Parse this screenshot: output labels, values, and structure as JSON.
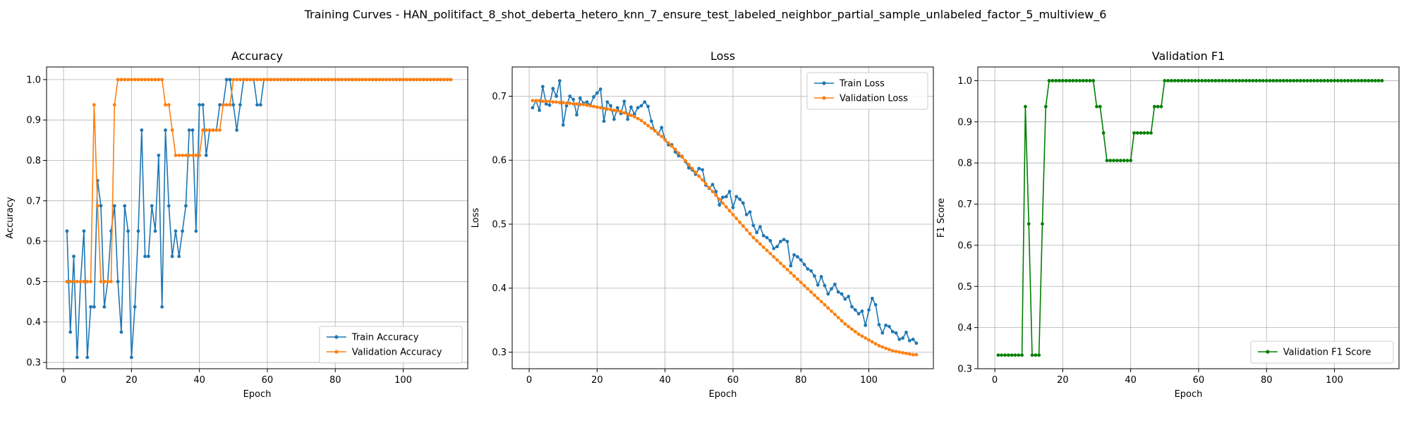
{
  "suptitle": "Training Curves - HAN_politifact_8_shot_deberta_hetero_knn_7_ensure_test_labeled_neighbor_partial_sample_unlabeled_factor_5_multiview_6",
  "colors": {
    "blue": "#1f77b4",
    "orange": "#ff7f0e",
    "green": "#008000",
    "grid": "#b0b0b0"
  },
  "chart_data": [
    {
      "type": "line",
      "title": "Accuracy",
      "xlabel": "Epoch",
      "ylabel": "Accuracy",
      "xlim": [
        -5,
        119
      ],
      "ylim": [
        0.2844,
        1.0312
      ],
      "xticks": [
        0,
        20,
        40,
        60,
        80,
        100
      ],
      "yticks": [
        0.3,
        0.4,
        0.5,
        0.6,
        0.7,
        0.8,
        0.9,
        1.0
      ],
      "ytick_decimals": 1,
      "grid": true,
      "legend_position": "lower-right",
      "series": [
        {
          "name": "Train Accuracy",
          "color": "#1f77b4",
          "values": [
            0.625,
            0.375,
            0.5625,
            0.3125,
            0.5,
            0.625,
            0.3125,
            0.4375,
            0.4375,
            0.75,
            0.6875,
            0.4375,
            0.5,
            0.625,
            0.6875,
            0.5,
            0.375,
            0.6875,
            0.625,
            0.3125,
            0.4375,
            0.625,
            0.875,
            0.5625,
            0.5625,
            0.6875,
            0.625,
            0.8125,
            0.4375,
            0.875,
            0.6875,
            0.5625,
            0.625,
            0.5625,
            0.625,
            0.6875,
            0.875,
            0.875,
            0.625,
            0.9375,
            0.9375,
            0.8125,
            0.875,
            0.875,
            0.875,
            0.9375,
            0.9375,
            1.0,
            1.0,
            0.9375,
            0.875,
            0.9375,
            1.0,
            1.0,
            1.0,
            1.0,
            0.9375,
            0.9375,
            1.0,
            1.0,
            1.0,
            1.0,
            1.0,
            1.0,
            1.0,
            1.0,
            1.0,
            1.0,
            1.0,
            1.0,
            1.0,
            1.0,
            1.0,
            1.0,
            1.0,
            1.0,
            1.0,
            1.0,
            1.0,
            1.0,
            1.0,
            1.0,
            1.0,
            1.0,
            1.0,
            1.0,
            1.0,
            1.0,
            1.0,
            1.0,
            1.0,
            1.0,
            1.0,
            1.0,
            1.0,
            1.0,
            1.0,
            1.0,
            1.0,
            1.0,
            1.0,
            1.0,
            1.0,
            1.0,
            1.0,
            1.0,
            1.0,
            1.0,
            1.0,
            1.0,
            1.0,
            1.0,
            1.0,
            1.0
          ]
        },
        {
          "name": "Validation Accuracy",
          "color": "#ff7f0e",
          "values": [
            0.5,
            0.5,
            0.5,
            0.5,
            0.5,
            0.5,
            0.5,
            0.5,
            0.9375,
            0.6875,
            0.5,
            0.5,
            0.5,
            0.5,
            0.9375,
            1.0,
            1.0,
            1.0,
            1.0,
            1.0,
            1.0,
            1.0,
            1.0,
            1.0,
            1.0,
            1.0,
            1.0,
            1.0,
            1.0,
            0.9375,
            0.9375,
            0.875,
            0.8125,
            0.8125,
            0.8125,
            0.8125,
            0.8125,
            0.8125,
            0.8125,
            0.8125,
            0.875,
            0.875,
            0.875,
            0.875,
            0.875,
            0.875,
            0.9375,
            0.9375,
            0.9375,
            1.0,
            1.0,
            1.0,
            1.0,
            1.0,
            1.0,
            1.0,
            1.0,
            1.0,
            1.0,
            1.0,
            1.0,
            1.0,
            1.0,
            1.0,
            1.0,
            1.0,
            1.0,
            1.0,
            1.0,
            1.0,
            1.0,
            1.0,
            1.0,
            1.0,
            1.0,
            1.0,
            1.0,
            1.0,
            1.0,
            1.0,
            1.0,
            1.0,
            1.0,
            1.0,
            1.0,
            1.0,
            1.0,
            1.0,
            1.0,
            1.0,
            1.0,
            1.0,
            1.0,
            1.0,
            1.0,
            1.0,
            1.0,
            1.0,
            1.0,
            1.0,
            1.0,
            1.0,
            1.0,
            1.0,
            1.0,
            1.0,
            1.0,
            1.0,
            1.0,
            1.0,
            1.0,
            1.0,
            1.0,
            1.0
          ]
        }
      ]
    },
    {
      "type": "line",
      "title": "Loss",
      "xlabel": "Epoch",
      "ylabel": "Loss",
      "xlim": [
        -5,
        119
      ],
      "ylim": [
        0.2741,
        0.7457
      ],
      "xticks": [
        0,
        20,
        40,
        60,
        80,
        100
      ],
      "yticks": [
        0.3,
        0.4,
        0.5,
        0.6,
        0.7
      ],
      "ytick_decimals": 1,
      "grid": true,
      "legend_position": "upper-right",
      "series": [
        {
          "name": "Train Loss",
          "color": "#1f77b4",
          "values": [
            0.682,
            0.693,
            0.678,
            0.715,
            0.688,
            0.686,
            0.712,
            0.7,
            0.724,
            0.655,
            0.685,
            0.7,
            0.695,
            0.671,
            0.697,
            0.689,
            0.691,
            0.686,
            0.699,
            0.705,
            0.711,
            0.661,
            0.691,
            0.685,
            0.664,
            0.682,
            0.673,
            0.692,
            0.664,
            0.683,
            0.672,
            0.682,
            0.685,
            0.691,
            0.684,
            0.661,
            0.646,
            0.641,
            0.651,
            0.632,
            0.624,
            0.624,
            0.613,
            0.607,
            0.606,
            0.598,
            0.588,
            0.585,
            0.578,
            0.587,
            0.585,
            0.561,
            0.556,
            0.562,
            0.551,
            0.53,
            0.542,
            0.543,
            0.551,
            0.526,
            0.543,
            0.539,
            0.533,
            0.515,
            0.519,
            0.498,
            0.487,
            0.496,
            0.482,
            0.479,
            0.474,
            0.462,
            0.465,
            0.473,
            0.476,
            0.473,
            0.435,
            0.452,
            0.449,
            0.444,
            0.437,
            0.43,
            0.427,
            0.419,
            0.405,
            0.418,
            0.404,
            0.391,
            0.399,
            0.406,
            0.394,
            0.391,
            0.383,
            0.387,
            0.371,
            0.366,
            0.36,
            0.364,
            0.342,
            0.366,
            0.384,
            0.374,
            0.343,
            0.33,
            0.342,
            0.34,
            0.332,
            0.33,
            0.32,
            0.322,
            0.331,
            0.318,
            0.32,
            0.314
          ]
        },
        {
          "name": "Validation Loss",
          "color": "#ff7f0e",
          "values": [
            0.693,
            0.693,
            0.693,
            0.692,
            0.692,
            0.692,
            0.691,
            0.691,
            0.69,
            0.69,
            0.689,
            0.689,
            0.688,
            0.688,
            0.687,
            0.687,
            0.686,
            0.685,
            0.684,
            0.683,
            0.682,
            0.681,
            0.68,
            0.679,
            0.678,
            0.677,
            0.676,
            0.674,
            0.672,
            0.67,
            0.668,
            0.665,
            0.662,
            0.658,
            0.654,
            0.65,
            0.646,
            0.642,
            0.637,
            0.632,
            0.627,
            0.622,
            0.617,
            0.611,
            0.605,
            0.599,
            0.593,
            0.587,
            0.581,
            0.575,
            0.569,
            0.563,
            0.557,
            0.551,
            0.545,
            0.539,
            0.533,
            0.527,
            0.521,
            0.515,
            0.509,
            0.503,
            0.497,
            0.491,
            0.485,
            0.479,
            0.474,
            0.469,
            0.464,
            0.459,
            0.454,
            0.449,
            0.444,
            0.439,
            0.434,
            0.429,
            0.424,
            0.419,
            0.414,
            0.409,
            0.404,
            0.399,
            0.394,
            0.389,
            0.384,
            0.379,
            0.374,
            0.369,
            0.364,
            0.359,
            0.354,
            0.349,
            0.344,
            0.34,
            0.336,
            0.332,
            0.328,
            0.325,
            0.322,
            0.319,
            0.316,
            0.313,
            0.31,
            0.308,
            0.306,
            0.304,
            0.302,
            0.301,
            0.3,
            0.299,
            0.298,
            0.297,
            0.296,
            0.296
          ]
        }
      ]
    },
    {
      "type": "line",
      "title": "Validation F1",
      "xlabel": "Epoch",
      "ylabel": "F1 Score",
      "xlim": [
        -5,
        119
      ],
      "ylim": [
        0.3,
        1.0333
      ],
      "xticks": [
        0,
        20,
        40,
        60,
        80,
        100
      ],
      "yticks": [
        0.3,
        0.4,
        0.5,
        0.6,
        0.7,
        0.8,
        0.9,
        1.0
      ],
      "ytick_decimals": 1,
      "grid": true,
      "legend_position": "lower-right",
      "series": [
        {
          "name": "Validation F1 Score",
          "color": "#008000",
          "values": [
            0.333,
            0.333,
            0.333,
            0.333,
            0.333,
            0.333,
            0.333,
            0.333,
            0.937,
            0.652,
            0.333,
            0.333,
            0.333,
            0.652,
            0.937,
            1.0,
            1.0,
            1.0,
            1.0,
            1.0,
            1.0,
            1.0,
            1.0,
            1.0,
            1.0,
            1.0,
            1.0,
            1.0,
            1.0,
            0.937,
            0.937,
            0.873,
            0.806,
            0.806,
            0.806,
            0.806,
            0.806,
            0.806,
            0.806,
            0.806,
            0.873,
            0.873,
            0.873,
            0.873,
            0.873,
            0.873,
            0.937,
            0.937,
            0.937,
            1.0,
            1.0,
            1.0,
            1.0,
            1.0,
            1.0,
            1.0,
            1.0,
            1.0,
            1.0,
            1.0,
            1.0,
            1.0,
            1.0,
            1.0,
            1.0,
            1.0,
            1.0,
            1.0,
            1.0,
            1.0,
            1.0,
            1.0,
            1.0,
            1.0,
            1.0,
            1.0,
            1.0,
            1.0,
            1.0,
            1.0,
            1.0,
            1.0,
            1.0,
            1.0,
            1.0,
            1.0,
            1.0,
            1.0,
            1.0,
            1.0,
            1.0,
            1.0,
            1.0,
            1.0,
            1.0,
            1.0,
            1.0,
            1.0,
            1.0,
            1.0,
            1.0,
            1.0,
            1.0,
            1.0,
            1.0,
            1.0,
            1.0,
            1.0,
            1.0,
            1.0,
            1.0,
            1.0,
            1.0,
            1.0
          ]
        }
      ]
    }
  ]
}
